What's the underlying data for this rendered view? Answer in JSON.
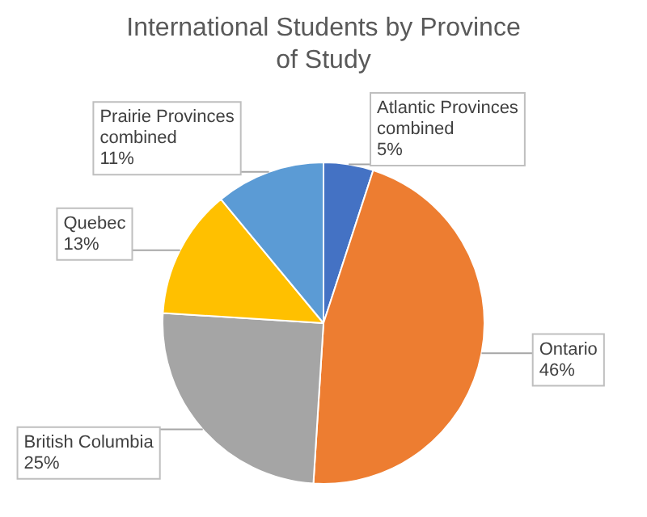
{
  "chart_data": {
    "type": "pie",
    "title": "International Students by Province of Study",
    "categories": [
      "Atlantic Provinces combined",
      "Ontario",
      "British Columbia",
      "Quebec",
      "Prairie Provinces combined"
    ],
    "values": [
      5,
      46,
      25,
      13,
      11
    ],
    "value_labels": [
      "5%",
      "46%",
      "25%",
      "13%",
      "11%"
    ],
    "colors": [
      "#4472c4",
      "#ed7d31",
      "#a5a5a5",
      "#ffc000",
      "#5b9bd5"
    ],
    "legend": false
  }
}
